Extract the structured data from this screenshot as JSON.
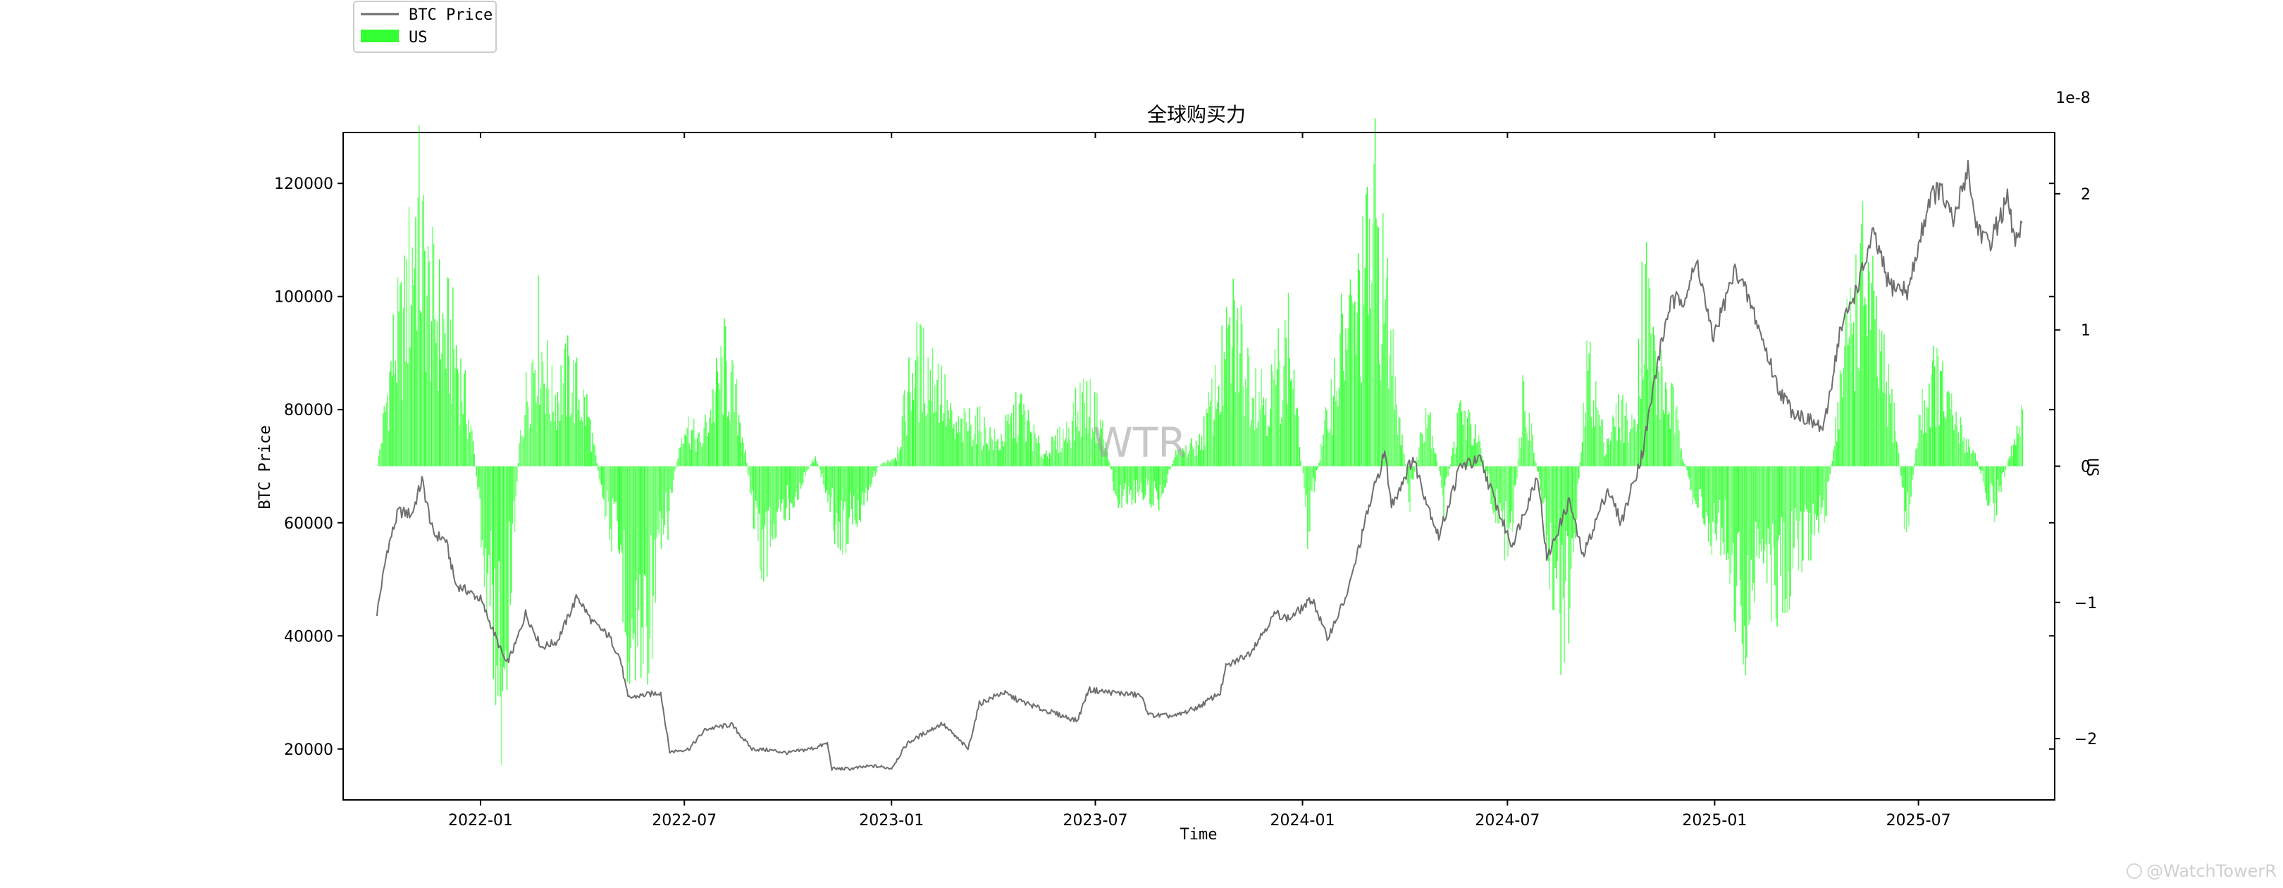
{
  "chart_data": {
    "type": "line",
    "title": "全球购买力",
    "xlabel": "Time",
    "ylabel": "BTC Price",
    "y2label": "US",
    "y2_offset_text": "1e-8",
    "watermark": "WTR",
    "credit": "@WatchTowerR",
    "xlim": [
      "2021-09-01",
      "2025-10-30"
    ],
    "ylim": [
      11000,
      129000
    ],
    "y2lim": [
      -2.45,
      2.45
    ],
    "x_ticks": [
      {
        "date": "2022-01-01",
        "label": "2022-01"
      },
      {
        "date": "2022-07-01",
        "label": "2022-07"
      },
      {
        "date": "2023-01-01",
        "label": "2023-01"
      },
      {
        "date": "2023-07-01",
        "label": "2023-07"
      },
      {
        "date": "2024-01-01",
        "label": "2024-01"
      },
      {
        "date": "2024-07-01",
        "label": "2024-07"
      },
      {
        "date": "2025-01-01",
        "label": "2025-01"
      },
      {
        "date": "2025-07-01",
        "label": "2025-07"
      }
    ],
    "y_ticks": [
      {
        "value": 20000,
        "label": "20000"
      },
      {
        "value": 40000,
        "label": "40000"
      },
      {
        "value": 60000,
        "label": "60000"
      },
      {
        "value": 80000,
        "label": "80000"
      },
      {
        "value": 100000,
        "label": "100000"
      },
      {
        "value": 120000,
        "label": "120000"
      }
    ],
    "y2_ticks": [
      {
        "value": -2,
        "label": "−2"
      },
      {
        "value": -1,
        "label": "−1"
      },
      {
        "value": 0,
        "label": "0"
      },
      {
        "value": 1,
        "label": "1"
      },
      {
        "value": 2,
        "label": "2"
      }
    ],
    "legend": {
      "placement": "top-left, outside plot",
      "entries": [
        {
          "label": "BTC Price",
          "kind": "line"
        },
        {
          "label": "US",
          "kind": "patch"
        }
      ]
    },
    "colors": {
      "price_line": "#6e6e6e",
      "us_bars": "#33ff33",
      "axis": "#000000"
    },
    "series": [
      {
        "name": "BTC Price",
        "axis": "left",
        "kind": "line",
        "points": [
          [
            "2021-10-01",
            44000
          ],
          [
            "2021-10-10",
            55000
          ],
          [
            "2021-10-20",
            62000
          ],
          [
            "2021-11-01",
            61500
          ],
          [
            "2021-11-10",
            67500
          ],
          [
            "2021-11-20",
            58000
          ],
          [
            "2021-12-01",
            57000
          ],
          [
            "2021-12-10",
            49000
          ],
          [
            "2021-12-20",
            48000
          ],
          [
            "2022-01-01",
            46500
          ],
          [
            "2022-01-10",
            42000
          ],
          [
            "2022-01-24",
            35000
          ],
          [
            "2022-02-01",
            38500
          ],
          [
            "2022-02-10",
            44000
          ],
          [
            "2022-02-24",
            38000
          ],
          [
            "2022-03-10",
            39000
          ],
          [
            "2022-03-28",
            47000
          ],
          [
            "2022-04-10",
            42500
          ],
          [
            "2022-04-25",
            40000
          ],
          [
            "2022-05-05",
            36000
          ],
          [
            "2022-05-12",
            29000
          ],
          [
            "2022-05-25",
            29500
          ],
          [
            "2022-06-10",
            30000
          ],
          [
            "2022-06-18",
            19500
          ],
          [
            "2022-07-05",
            20000
          ],
          [
            "2022-07-20",
            23500
          ],
          [
            "2022-08-12",
            24300
          ],
          [
            "2022-08-30",
            20000
          ],
          [
            "2022-09-15",
            19800
          ],
          [
            "2022-10-01",
            19300
          ],
          [
            "2022-10-25",
            20200
          ],
          [
            "2022-11-05",
            21000
          ],
          [
            "2022-11-09",
            16500
          ],
          [
            "2022-11-25",
            16500
          ],
          [
            "2022-12-15",
            17000
          ],
          [
            "2023-01-01",
            16600
          ],
          [
            "2023-01-15",
            21000
          ],
          [
            "2023-02-01",
            23000
          ],
          [
            "2023-02-15",
            24500
          ],
          [
            "2023-03-10",
            20000
          ],
          [
            "2023-03-20",
            28000
          ],
          [
            "2023-04-10",
            30000
          ],
          [
            "2023-04-25",
            28500
          ],
          [
            "2023-05-15",
            27000
          ],
          [
            "2023-06-15",
            25000
          ],
          [
            "2023-06-25",
            30500
          ],
          [
            "2023-07-15",
            30000
          ],
          [
            "2023-08-10",
            29500
          ],
          [
            "2023-08-18",
            26000
          ],
          [
            "2023-09-10",
            25800
          ],
          [
            "2023-10-01",
            27500
          ],
          [
            "2023-10-20",
            30000
          ],
          [
            "2023-10-25",
            34500
          ],
          [
            "2023-11-15",
            37000
          ],
          [
            "2023-12-08",
            44000
          ],
          [
            "2023-12-20",
            43000
          ],
          [
            "2024-01-10",
            46500
          ],
          [
            "2024-01-23",
            39500
          ],
          [
            "2024-02-10",
            47500
          ],
          [
            "2024-02-28",
            62000
          ],
          [
            "2024-03-14",
            72500
          ],
          [
            "2024-03-20",
            63000
          ],
          [
            "2024-04-08",
            71500
          ],
          [
            "2024-04-20",
            64000
          ],
          [
            "2024-05-01",
            57500
          ],
          [
            "2024-05-20",
            70000
          ],
          [
            "2024-06-07",
            71000
          ],
          [
            "2024-06-25",
            61000
          ],
          [
            "2024-07-05",
            56000
          ],
          [
            "2024-07-28",
            68500
          ],
          [
            "2024-08-05",
            53500
          ],
          [
            "2024-08-25",
            64000
          ],
          [
            "2024-09-06",
            54000
          ],
          [
            "2024-09-28",
            66000
          ],
          [
            "2024-10-10",
            60000
          ],
          [
            "2024-10-29",
            72500
          ],
          [
            "2024-11-12",
            89000
          ],
          [
            "2024-11-22",
            98500
          ],
          [
            "2024-12-05",
            100000
          ],
          [
            "2024-12-17",
            106000
          ],
          [
            "2024-12-30",
            92500
          ],
          [
            "2025-01-20",
            105000
          ],
          [
            "2025-02-05",
            97000
          ],
          [
            "2025-02-26",
            84000
          ],
          [
            "2025-03-10",
            80000
          ],
          [
            "2025-04-08",
            76500
          ],
          [
            "2025-04-22",
            93500
          ],
          [
            "2025-05-10",
            103000
          ],
          [
            "2025-05-22",
            111000
          ],
          [
            "2025-06-05",
            102000
          ],
          [
            "2025-06-22",
            101000
          ],
          [
            "2025-07-11",
            117500
          ],
          [
            "2025-07-20",
            119000
          ],
          [
            "2025-08-01",
            113000
          ],
          [
            "2025-08-14",
            123000
          ],
          [
            "2025-08-20",
            113500
          ],
          [
            "2025-09-01",
            109000
          ],
          [
            "2025-09-18",
            117000
          ],
          [
            "2025-09-25",
            109500
          ],
          [
            "2025-10-01",
            112000
          ]
        ]
      },
      {
        "name": "US",
        "axis": "right",
        "kind": "bar",
        "unit_multiplier": "1e-8",
        "points": [
          [
            "2021-10-01",
            0.0
          ],
          [
            "2021-10-15",
            1.0
          ],
          [
            "2021-10-25",
            1.3
          ],
          [
            "2021-11-05",
            2.2
          ],
          [
            "2021-11-15",
            1.5
          ],
          [
            "2021-11-25",
            1.3
          ],
          [
            "2021-12-10",
            1.0
          ],
          [
            "2021-12-25",
            0.2
          ],
          [
            "2022-01-05",
            -0.9
          ],
          [
            "2022-01-20",
            -1.9
          ],
          [
            "2022-02-05",
            0.3
          ],
          [
            "2022-02-20",
            1.2
          ],
          [
            "2022-03-05",
            0.6
          ],
          [
            "2022-03-20",
            0.8
          ],
          [
            "2022-04-05",
            0.5
          ],
          [
            "2022-04-20",
            -0.3
          ],
          [
            "2022-05-05",
            -0.8
          ],
          [
            "2022-05-15",
            -1.6
          ],
          [
            "2022-05-30",
            -1.3
          ],
          [
            "2022-06-15",
            -0.5
          ],
          [
            "2022-06-30",
            0.4
          ],
          [
            "2022-07-15",
            0.2
          ],
          [
            "2022-08-05",
            0.9
          ],
          [
            "2022-08-20",
            0.4
          ],
          [
            "2022-09-05",
            -0.8
          ],
          [
            "2022-09-20",
            -0.5
          ],
          [
            "2022-10-10",
            -0.2
          ],
          [
            "2022-10-25",
            0.1
          ],
          [
            "2022-11-15",
            -0.6
          ],
          [
            "2022-12-01",
            -0.4
          ],
          [
            "2022-12-20",
            0.0
          ],
          [
            "2023-01-05",
            0.1
          ],
          [
            "2023-01-20",
            0.9
          ],
          [
            "2023-02-10",
            0.8
          ],
          [
            "2023-02-25",
            0.3
          ],
          [
            "2023-03-15",
            0.4
          ],
          [
            "2023-04-05",
            0.2
          ],
          [
            "2023-04-25",
            0.5
          ],
          [
            "2023-05-15",
            0.1
          ],
          [
            "2023-06-05",
            0.3
          ],
          [
            "2023-06-20",
            0.6
          ],
          [
            "2023-07-05",
            0.4
          ],
          [
            "2023-07-20",
            -0.3
          ],
          [
            "2023-08-10",
            -0.2
          ],
          [
            "2023-08-25",
            -0.3
          ],
          [
            "2023-09-10",
            0.1
          ],
          [
            "2023-10-01",
            0.2
          ],
          [
            "2023-10-20",
            0.8
          ],
          [
            "2023-11-01",
            1.2
          ],
          [
            "2023-11-15",
            0.8
          ],
          [
            "2023-12-01",
            0.6
          ],
          [
            "2023-12-20",
            1.1
          ],
          [
            "2024-01-05",
            -0.5
          ],
          [
            "2024-01-20",
            0.3
          ],
          [
            "2024-02-05",
            1.1
          ],
          [
            "2024-02-20",
            1.4
          ],
          [
            "2024-03-05",
            2.1
          ],
          [
            "2024-03-20",
            1.0
          ],
          [
            "2024-04-05",
            -0.3
          ],
          [
            "2024-04-20",
            0.6
          ],
          [
            "2024-05-05",
            -0.3
          ],
          [
            "2024-05-20",
            0.5
          ],
          [
            "2024-06-05",
            0.2
          ],
          [
            "2024-06-20",
            -0.4
          ],
          [
            "2024-07-05",
            -0.7
          ],
          [
            "2024-07-15",
            0.8
          ],
          [
            "2024-08-01",
            -0.4
          ],
          [
            "2024-08-15",
            -1.3
          ],
          [
            "2024-08-25",
            -1.1
          ],
          [
            "2024-09-10",
            0.9
          ],
          [
            "2024-09-25",
            0.2
          ],
          [
            "2024-10-10",
            0.5
          ],
          [
            "2024-10-20",
            0.3
          ],
          [
            "2024-10-30",
            1.6
          ],
          [
            "2024-11-10",
            0.8
          ],
          [
            "2024-11-25",
            0.5
          ],
          [
            "2024-12-10",
            -0.2
          ],
          [
            "2024-12-25",
            -0.5
          ],
          [
            "2025-01-10",
            -0.6
          ],
          [
            "2025-01-25",
            -1.4
          ],
          [
            "2025-02-10",
            -0.7
          ],
          [
            "2025-02-25",
            -1.1
          ],
          [
            "2025-03-10",
            -0.9
          ],
          [
            "2025-03-25",
            -0.6
          ],
          [
            "2025-04-10",
            -0.3
          ],
          [
            "2025-04-20",
            0.5
          ],
          [
            "2025-05-01",
            1.3
          ],
          [
            "2025-05-15",
            1.7
          ],
          [
            "2025-05-25",
            1.0
          ],
          [
            "2025-06-10",
            0.4
          ],
          [
            "2025-06-20",
            -0.6
          ],
          [
            "2025-07-01",
            0.4
          ],
          [
            "2025-07-15",
            0.8
          ],
          [
            "2025-08-01",
            0.4
          ],
          [
            "2025-08-20",
            0.1
          ],
          [
            "2025-09-05",
            -0.4
          ],
          [
            "2025-09-20",
            0.1
          ],
          [
            "2025-10-01",
            0.4
          ]
        ]
      }
    ]
  }
}
